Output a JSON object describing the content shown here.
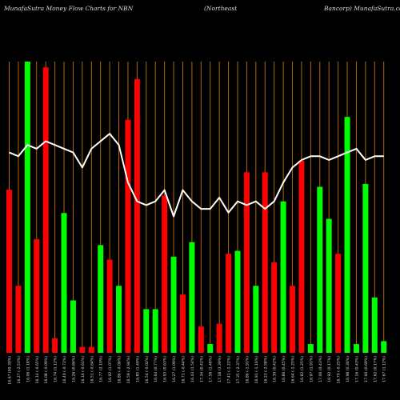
{
  "header": {
    "left": "MunafaSutra  Money Flow  Charts for NBN",
    "middle": "(Northeast",
    "right": "Bancorp) MunafaSutra.com"
  },
  "colors": {
    "background": "#000000",
    "up": "#00ff00",
    "down": "#ff0000",
    "grid": "#b3660d",
    "line": "#ffffff",
    "label": "#dcdcdc"
  },
  "chart_data": {
    "type": "bar",
    "categories": [
      "16.67 (90.30%)",
      "16.27 (-2.53%)",
      "16.06 (1.18%)",
      "16.14 (-0.65%)",
      "16.08 (-0.09%)",
      "16.74 (1.12%)",
      "16.40 (-0.72%)",
      "16.26 (0.86%)",
      "16.16 (-0.61%)",
      "16.51 (-0.64%)",
      "16.77 (2.19%)",
      "16.92 (1.07%)",
      "16.86 (-0.06%)",
      "16.59 (-2.94%)",
      "16.85 (1.49%)",
      "16.54 (-0.02%)",
      "16.64 (0.77%)",
      "16.93 (0.63%)",
      "16.27 (1.09%)",
      "16.71 (-0.44%)",
      "16.43 (1.54%)",
      "17.34 (0.42%)",
      "17.58 (1.48%)",
      "17.18 (3.39%)",
      "17.41 (-1.22%)",
      "17.35 (-2.37%)",
      "16.86 (-1.91%)",
      "16.91 (-1.16%)",
      "16.23 (-2.58%)",
      "16.30 (0.42%)",
      "16.86 (0.45%)",
      "16.64 (-1.25%)",
      "16.82 (1.25%)",
      "16.97 (1.91%)",
      "17.06 (0.43%)",
      "16.92 (0.17%)",
      "16.70 (-0.25%)",
      "16.98 (0.36%)",
      "17.16 (0.43%)",
      "17.60 (0.69%)",
      "17.62 (0.17%)",
      "17.67 (1.12%)"
    ],
    "series": [
      {
        "values": [
          56,
          23,
          100,
          39,
          98,
          5,
          48,
          18,
          2,
          2,
          37,
          32,
          23,
          80,
          94,
          15,
          15,
          54,
          33,
          20,
          38,
          9,
          3,
          10,
          34,
          35,
          62,
          23,
          62,
          31,
          52,
          23,
          66,
          3,
          57,
          46,
          34,
          81,
          3,
          58,
          19,
          4
        ],
        "colors": [
          "r",
          "r",
          "g",
          "r",
          "r",
          "r",
          "g",
          "g",
          "r",
          "r",
          "g",
          "r",
          "g",
          "r",
          "r",
          "g",
          "g",
          "r",
          "g",
          "r",
          "g",
          "r",
          "g",
          "r",
          "r",
          "g",
          "r",
          "g",
          "r",
          "r",
          "g",
          "r",
          "r",
          "g",
          "g",
          "g",
          "r",
          "g",
          "g",
          "g",
          "g",
          "g"
        ]
      },
      {
        "values": [
          1.72,
          1.71,
          1.74,
          1.73,
          1.75,
          1.74,
          1.73,
          1.72,
          1.68,
          1.73,
          1.75,
          1.77,
          1.74,
          1.64,
          1.59,
          1.58,
          1.59,
          1.62,
          1.55,
          1.62,
          1.59,
          1.57,
          1.57,
          1.6,
          1.56,
          1.59,
          1.58,
          1.59,
          1.57,
          1.59,
          1.64,
          1.68,
          1.7,
          1.71,
          1.71,
          1.7,
          1.71,
          1.72,
          1.73,
          1.7,
          1.71,
          1.71
        ]
      }
    ],
    "ylim": [
      0,
      100
    ]
  }
}
